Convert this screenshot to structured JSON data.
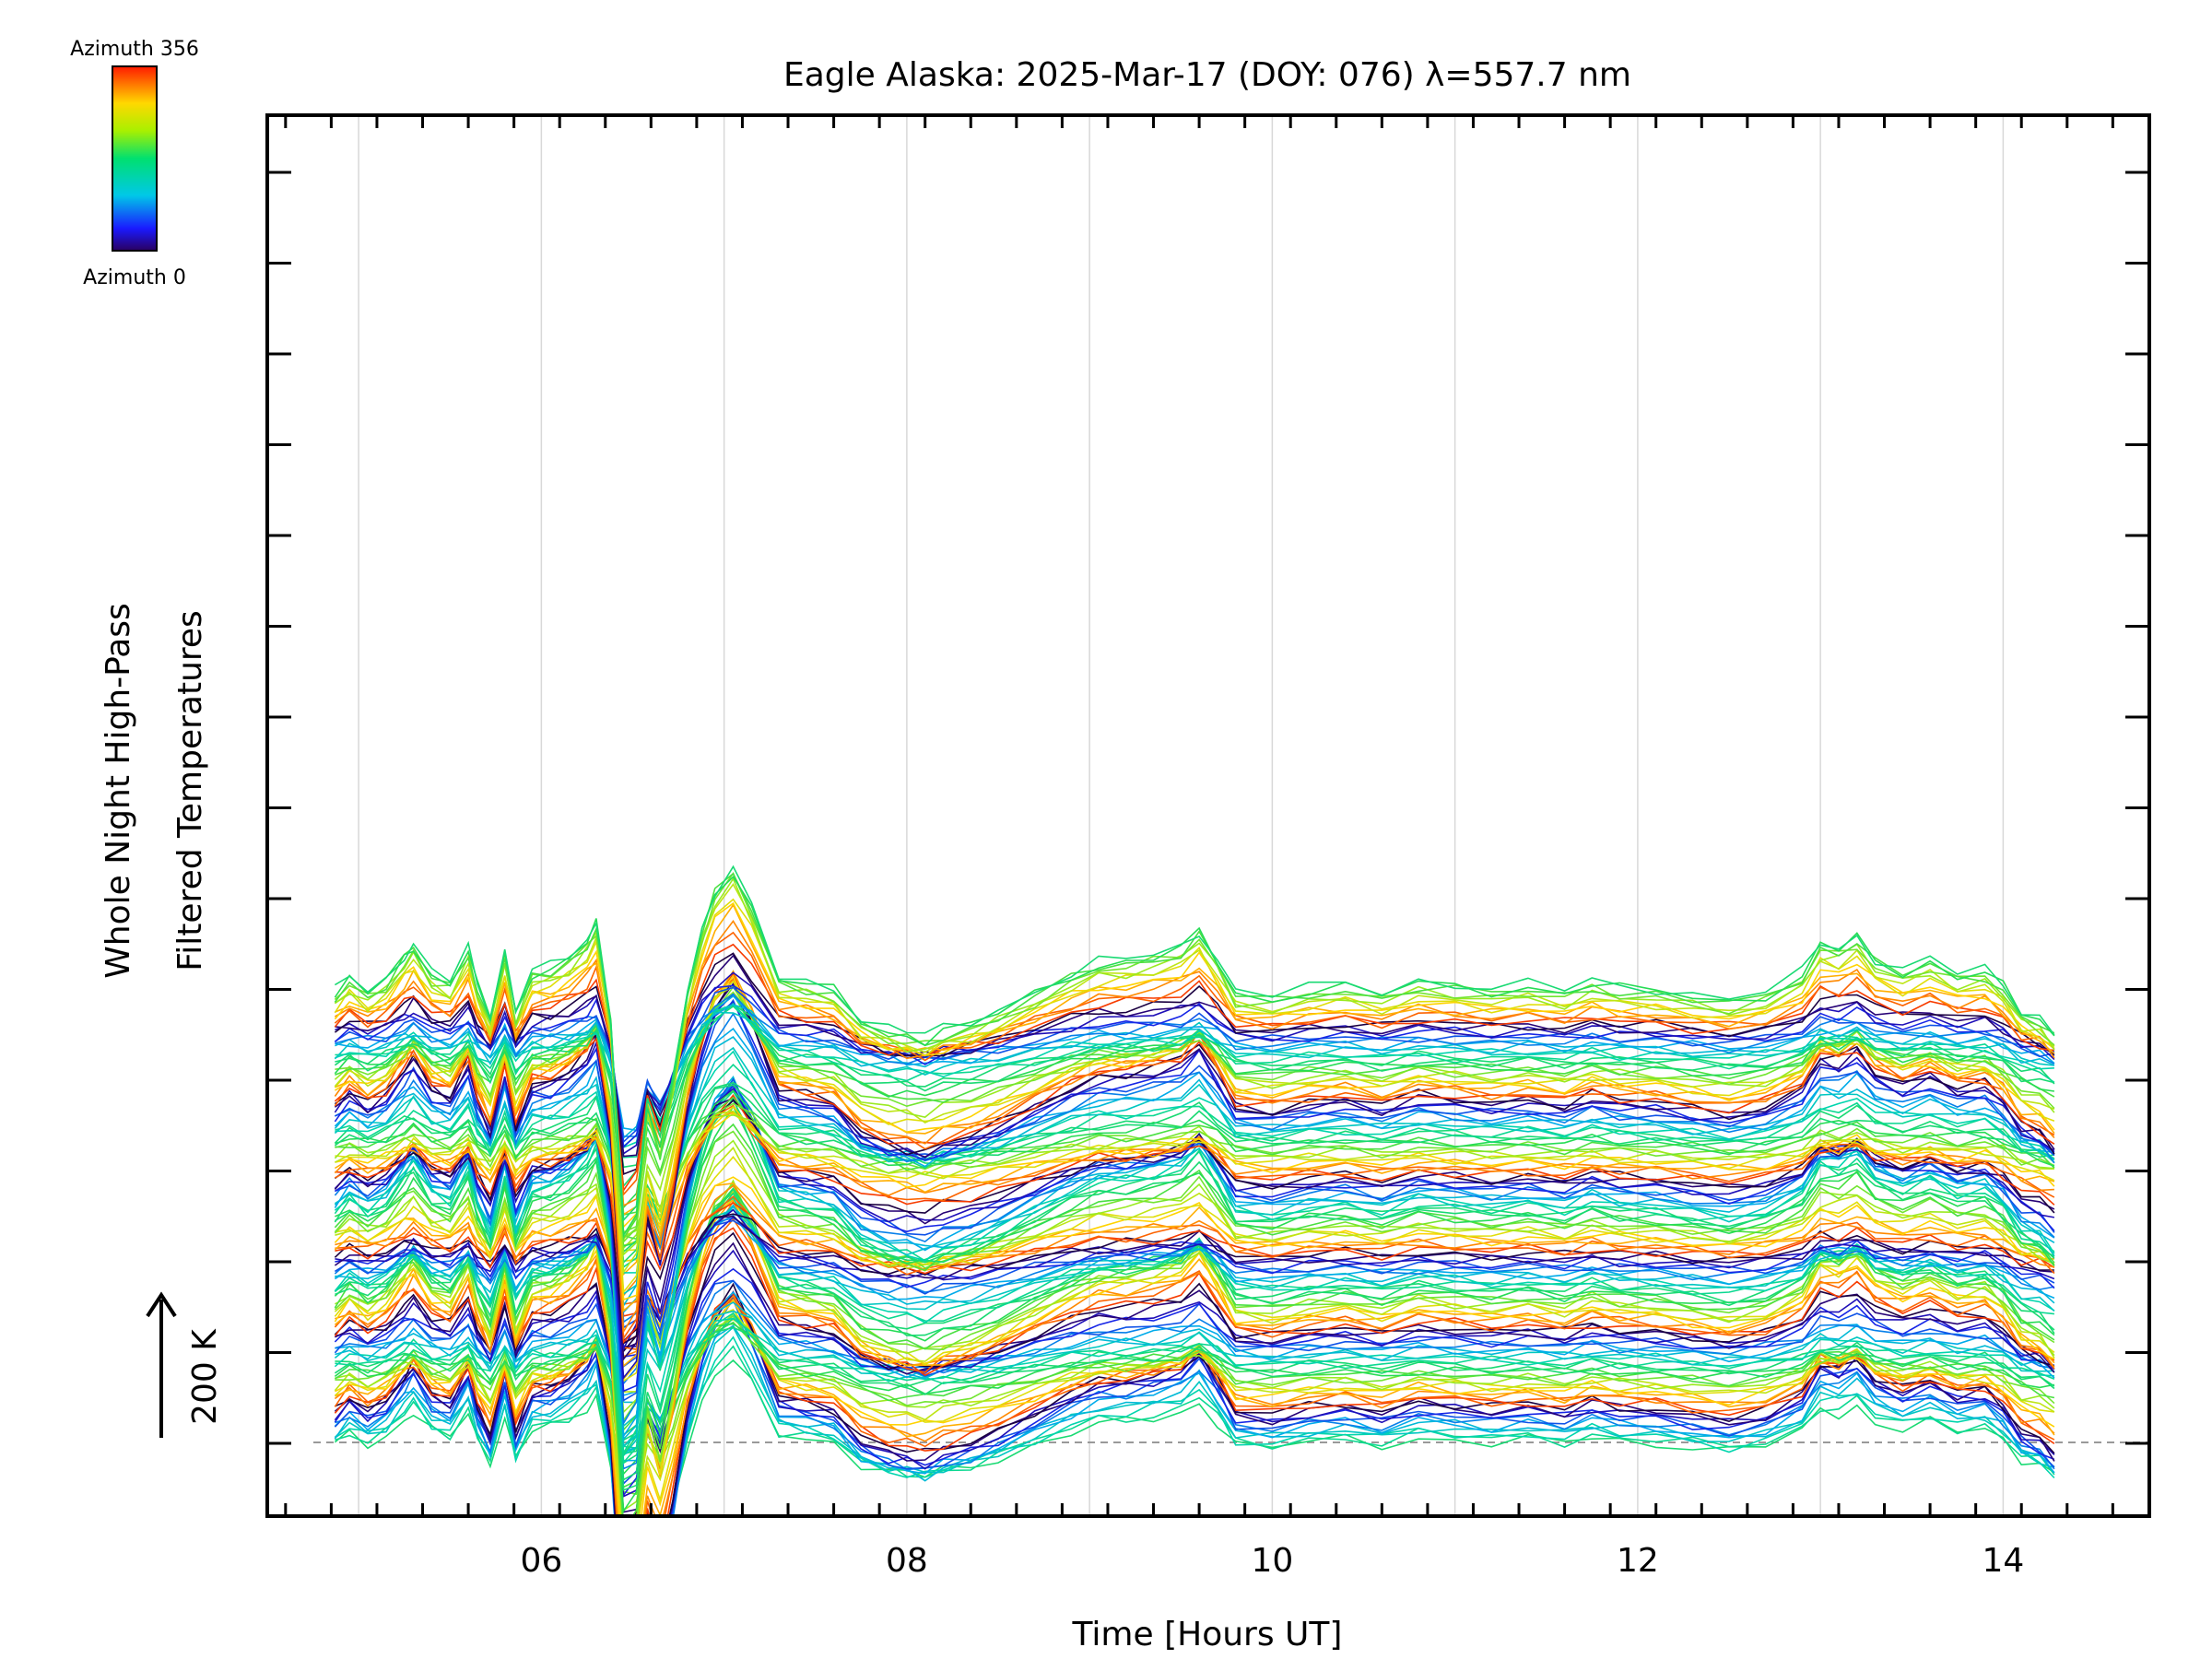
{
  "chart_data": {
    "type": "line",
    "title": "Eagle Alaska: 2025-Mar-17 (DOY: 076) λ=557.7 nm",
    "xlabel": "Time [Hours UT]",
    "ylabel": [
      "Whole Night High-Pass",
      "Filtered Temperatures"
    ],
    "scale_label": "200 K",
    "xlim": [
      4.5,
      14.8
    ],
    "x_ticks": [
      "06",
      "08",
      "10",
      "12",
      "14"
    ],
    "x_tick_values": [
      6,
      8,
      10,
      12,
      14
    ],
    "x_range_data": [
      4.87,
      14.28
    ],
    "grid": "vertical",
    "colorbar": {
      "top_label": "Azimuth 356",
      "bottom_label": "Azimuth 0",
      "colormap": "rainbow",
      "range": [
        0,
        356
      ]
    },
    "series_count": 144,
    "groups": 6,
    "lines_per_group": 24,
    "group_offset_K": 0,
    "base_profile": {
      "x": [
        4.87,
        4.95,
        5.05,
        5.15,
        5.25,
        5.3,
        5.4,
        5.5,
        5.6,
        5.65,
        5.72,
        5.8,
        5.86,
        5.95,
        6.05,
        6.15,
        6.25,
        6.3,
        6.38,
        6.45,
        6.52,
        6.58,
        6.65,
        6.72,
        6.8,
        6.88,
        6.95,
        7.05,
        7.15,
        7.3,
        7.45,
        7.6,
        7.75,
        7.9,
        8.0,
        8.1,
        8.2,
        8.35,
        8.5,
        8.7,
        8.9,
        9.05,
        9.2,
        9.35,
        9.5,
        9.6,
        9.7,
        9.8,
        10.0,
        10.2,
        10.4,
        10.6,
        10.8,
        11.0,
        11.2,
        11.4,
        11.6,
        11.75,
        11.9,
        12.1,
        12.3,
        12.5,
        12.7,
        12.9,
        13.0,
        13.1,
        13.2,
        13.3,
        13.45,
        13.6,
        13.75,
        13.9,
        14.0,
        14.1,
        14.2,
        14.28
      ],
      "y": [
        -5,
        15,
        -2,
        12,
        45,
        60,
        20,
        10,
        55,
        5,
        -35,
        50,
        -30,
        25,
        28,
        42,
        65,
        88,
        -40,
        -320,
        -300,
        -150,
        -210,
        -120,
        0,
        80,
        130,
        160,
        110,
        15,
        8,
        0,
        -40,
        -55,
        -60,
        -65,
        -55,
        -45,
        -30,
        -5,
        20,
        35,
        38,
        45,
        55,
        78,
        40,
        -5,
        -10,
        0,
        5,
        -5,
        10,
        5,
        0,
        5,
        -3,
        10,
        2,
        0,
        -8,
        -15,
        -5,
        20,
        60,
        55,
        70,
        40,
        25,
        38,
        20,
        25,
        5,
        -30,
        -40,
        -60
      ]
    },
    "per_line_step_K": 4.6
  }
}
